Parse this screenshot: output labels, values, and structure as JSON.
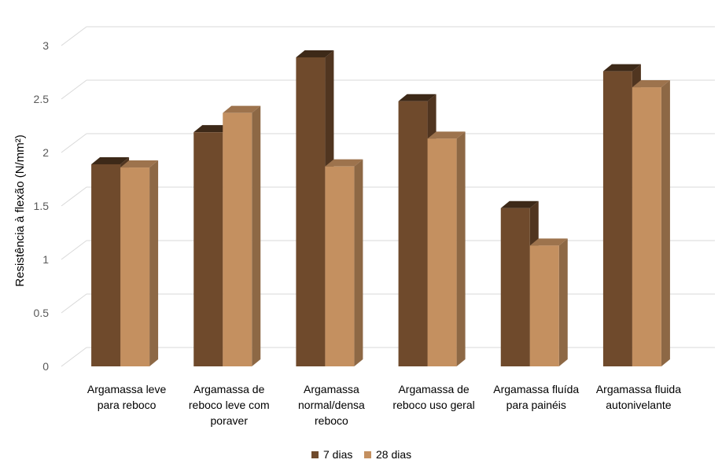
{
  "chart_data": {
    "type": "bar",
    "title": "",
    "ylabel": "Resistência à flexão (N/mm²)",
    "xlabel": "",
    "ylim": [
      0,
      3
    ],
    "yticks": [
      "0",
      "0.5",
      "1",
      "1.5",
      "2",
      "2.5",
      "3"
    ],
    "grid": true,
    "three_d": true,
    "legend_position": "bottom",
    "categories": [
      [
        "Argamassa leve",
        "para reboco"
      ],
      [
        "Argamassa de",
        "reboco leve com",
        "poraver"
      ],
      [
        "Argamassa",
        "normal/densa",
        "reboco"
      ],
      [
        "Argamassa de",
        "reboco uso geral"
      ],
      [
        "Argamassa fluída",
        "para painéis"
      ],
      [
        "Argamassa fluida",
        "autonivelante"
      ]
    ],
    "series": [
      {
        "name": "7 dias",
        "color": "#6f4a2c",
        "values": [
          1.89,
          2.19,
          2.89,
          2.48,
          1.48,
          2.76
        ]
      },
      {
        "name": "28 dias",
        "color": "#c49060",
        "values": [
          1.86,
          2.37,
          1.87,
          2.13,
          1.13,
          2.61
        ]
      }
    ]
  }
}
